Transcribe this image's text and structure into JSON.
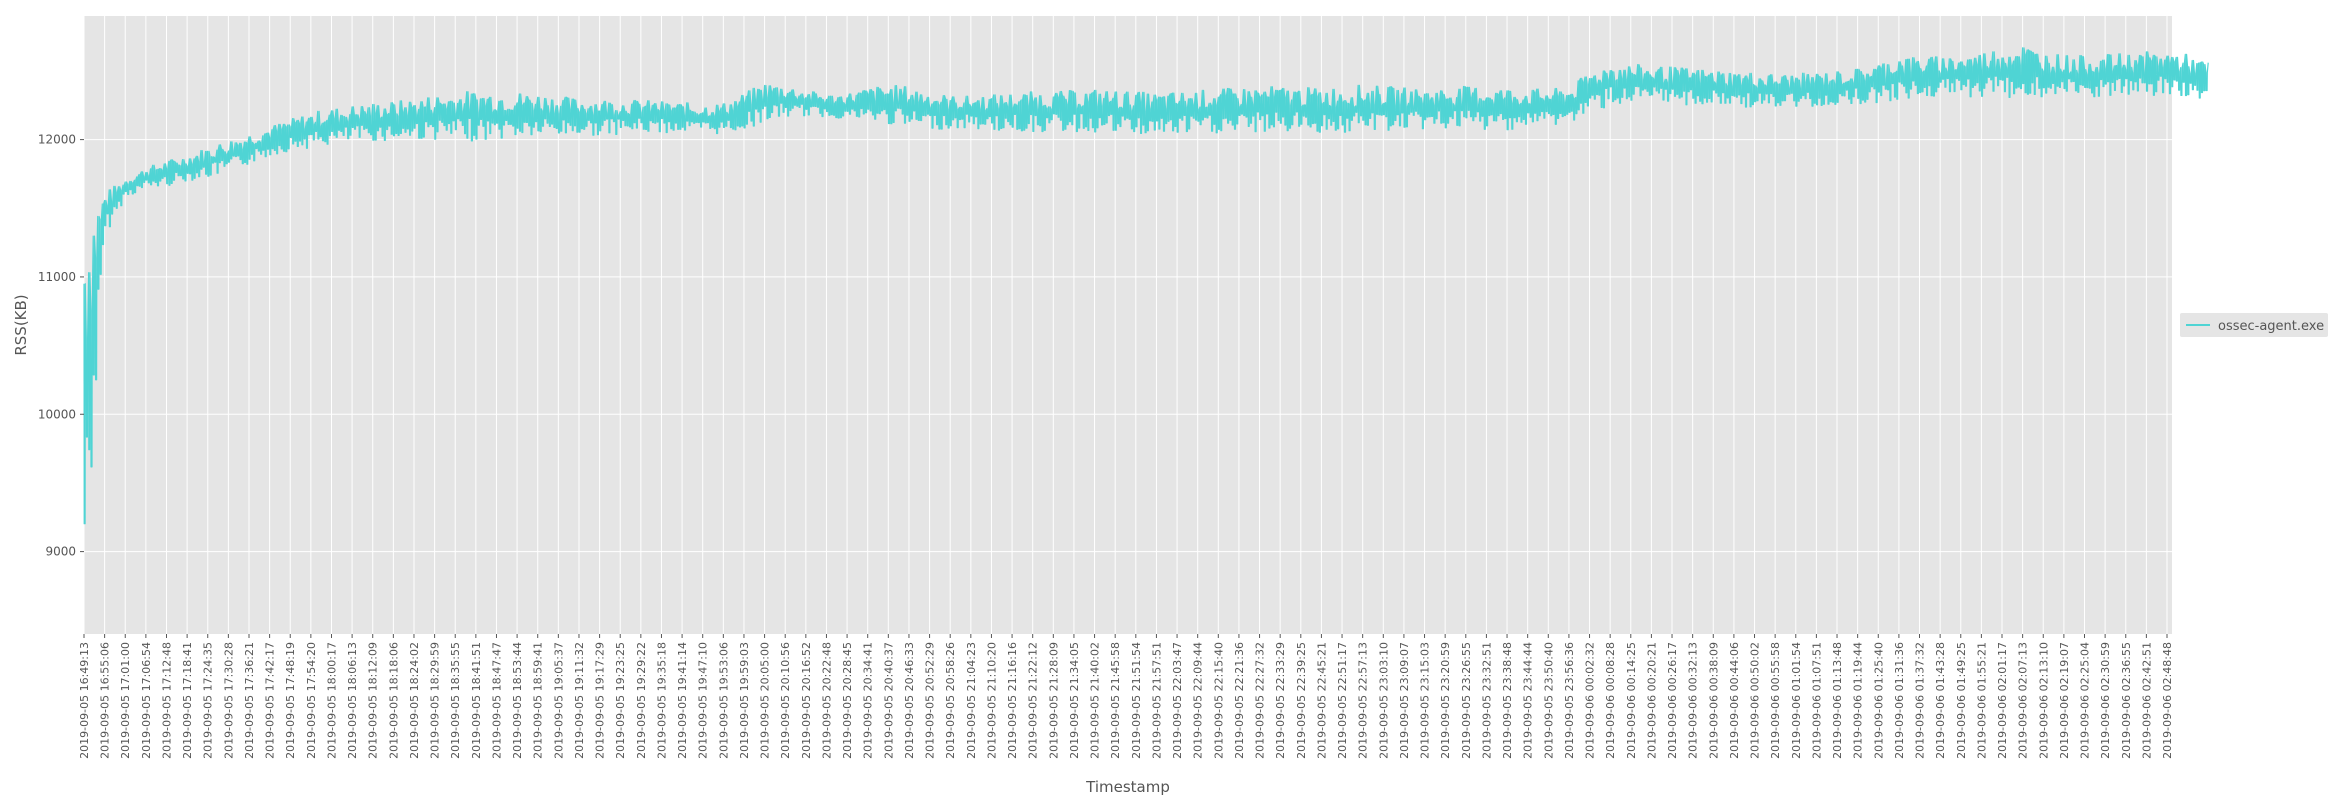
{
  "chart_data": {
    "type": "line",
    "title": "",
    "xlabel": "Timestamp",
    "ylabel": "RSS(KB)",
    "ylim": [
      8400,
      12900
    ],
    "yticks": [
      9000,
      10000,
      11000,
      12000
    ],
    "grid": true,
    "legend_placement": "right",
    "x_tick_labels": [
      "2019-09-05 16:49:13",
      "2019-09-05 16:55:06",
      "2019-09-05 17:01:00",
      "2019-09-05 17:06:54",
      "2019-09-05 17:12:48",
      "2019-09-05 17:18:41",
      "2019-09-05 17:24:35",
      "2019-09-05 17:30:28",
      "2019-09-05 17:36:21",
      "2019-09-05 17:42:17",
      "2019-09-05 17:48:19",
      "2019-09-05 17:54:20",
      "2019-09-05 18:00:17",
      "2019-09-05 18:06:13",
      "2019-09-05 18:12:09",
      "2019-09-05 18:18:06",
      "2019-09-05 18:24:02",
      "2019-09-05 18:29:59",
      "2019-09-05 18:35:55",
      "2019-09-05 18:41:51",
      "2019-09-05 18:47:47",
      "2019-09-05 18:53:44",
      "2019-09-05 18:59:41",
      "2019-09-05 19:05:37",
      "2019-09-05 19:11:32",
      "2019-09-05 19:17:29",
      "2019-09-05 19:23:25",
      "2019-09-05 19:29:22",
      "2019-09-05 19:35:18",
      "2019-09-05 19:41:14",
      "2019-09-05 19:47:10",
      "2019-09-05 19:53:06",
      "2019-09-05 19:59:03",
      "2019-09-05 20:05:00",
      "2019-09-05 20:10:56",
      "2019-09-05 20:16:52",
      "2019-09-05 20:22:48",
      "2019-09-05 20:28:45",
      "2019-09-05 20:34:41",
      "2019-09-05 20:40:37",
      "2019-09-05 20:46:33",
      "2019-09-05 20:52:29",
      "2019-09-05 20:58:26",
      "2019-09-05 21:04:23",
      "2019-09-05 21:10:20",
      "2019-09-05 21:16:16",
      "2019-09-05 21:22:12",
      "2019-09-05 21:28:09",
      "2019-09-05 21:34:05",
      "2019-09-05 21:40:02",
      "2019-09-05 21:45:58",
      "2019-09-05 21:51:54",
      "2019-09-05 21:57:51",
      "2019-09-05 22:03:47",
      "2019-09-05 22:09:44",
      "2019-09-05 22:15:40",
      "2019-09-05 22:21:36",
      "2019-09-05 22:27:32",
      "2019-09-05 22:33:29",
      "2019-09-05 22:39:25",
      "2019-09-05 22:45:21",
      "2019-09-05 22:51:17",
      "2019-09-05 22:57:13",
      "2019-09-05 23:03:10",
      "2019-09-05 23:09:07",
      "2019-09-05 23:15:03",
      "2019-09-05 23:20:59",
      "2019-09-05 23:26:55",
      "2019-09-05 23:32:51",
      "2019-09-05 23:38:48",
      "2019-09-05 23:44:44",
      "2019-09-05 23:50:40",
      "2019-09-05 23:56:36",
      "2019-09-06 00:02:32",
      "2019-09-06 00:08:28",
      "2019-09-06 00:14:25",
      "2019-09-06 00:20:21",
      "2019-09-06 00:26:17",
      "2019-09-06 00:32:13",
      "2019-09-06 00:38:09",
      "2019-09-06 00:44:06",
      "2019-09-06 00:50:02",
      "2019-09-06 00:55:58",
      "2019-09-06 01:01:54",
      "2019-09-06 01:07:51",
      "2019-09-06 01:13:48",
      "2019-09-06 01:19:44",
      "2019-09-06 01:25:40",
      "2019-09-06 01:31:36",
      "2019-09-06 01:37:32",
      "2019-09-06 01:43:28",
      "2019-09-06 01:49:25",
      "2019-09-06 01:55:21",
      "2019-09-06 02:01:17",
      "2019-09-06 02:07:13",
      "2019-09-06 02:13:10",
      "2019-09-06 02:19:07",
      "2019-09-06 02:25:04",
      "2019-09-06 02:30:59",
      "2019-09-06 02:36:55",
      "2019-09-06 02:42:51",
      "2019-09-06 02:48:48"
    ],
    "series": [
      {
        "name": "ossec-agent.exe",
        "color": "#4fd4d4",
        "min_values": [
          8600,
          11300,
          11580,
          11640,
          11660,
          11700,
          11720,
          11760,
          11820,
          11880,
          11920,
          11940,
          11960,
          11980,
          11990,
          11990,
          12000,
          12000,
          11990,
          11990,
          12000,
          12010,
          12020,
          12020,
          12030,
          12030,
          12040,
          12050,
          12050,
          12050,
          12040,
          12040,
          12070,
          12130,
          12160,
          12170,
          12160,
          12150,
          12130,
          12110,
          12080,
          12080,
          12070,
          12080,
          12060,
          12060,
          12050,
          12060,
          12050,
          12050,
          12040,
          12030,
          12030,
          12030,
          12040,
          12040,
          12040,
          12050,
          12050,
          12060,
          12050,
          12040,
          12050,
          12060,
          12070,
          12070,
          12080,
          12070,
          12060,
          12070,
          12090,
          12100,
          12110,
          12190,
          12250,
          12260,
          12260,
          12250,
          12250,
          12240,
          12240,
          12230,
          12220,
          12230,
          12240,
          12250,
          12260,
          12270,
          12280,
          12300,
          12310,
          12310,
          12310,
          12300,
          12300,
          12300,
          12300,
          12300,
          12300,
          12300,
          12310,
          12310,
          12300,
          12300
        ],
        "max_values": [
          11650,
          11620,
          11720,
          11800,
          11850,
          11890,
          11950,
          12000,
          12050,
          12100,
          12150,
          12200,
          12230,
          12250,
          12270,
          12280,
          12300,
          12330,
          12350,
          12360,
          12360,
          12350,
          12340,
          12320,
          12300,
          12300,
          12290,
          12290,
          12280,
          12270,
          12260,
          12270,
          12340,
          12420,
          12400,
          12360,
          12330,
          12340,
          12380,
          12400,
          12390,
          12350,
          12320,
          12320,
          12330,
          12340,
          12350,
          12350,
          12360,
          12370,
          12360,
          12350,
          12340,
          12350,
          12360,
          12370,
          12380,
          12390,
          12390,
          12380,
          12380,
          12390,
          12400,
          12390,
          12380,
          12370,
          12380,
          12390,
          12390,
          12380,
          12370,
          12370,
          12380,
          12500,
          12560,
          12550,
          12540,
          12530,
          12520,
          12510,
          12500,
          12490,
          12480,
          12480,
          12490,
          12500,
          12520,
          12560,
          12620,
          12600,
          12610,
          12620,
          12640,
          12680,
          12700,
          12640,
          12620,
          12610,
          12620,
          12630,
          12640,
          12650,
          12620,
          12560
        ]
      }
    ]
  }
}
